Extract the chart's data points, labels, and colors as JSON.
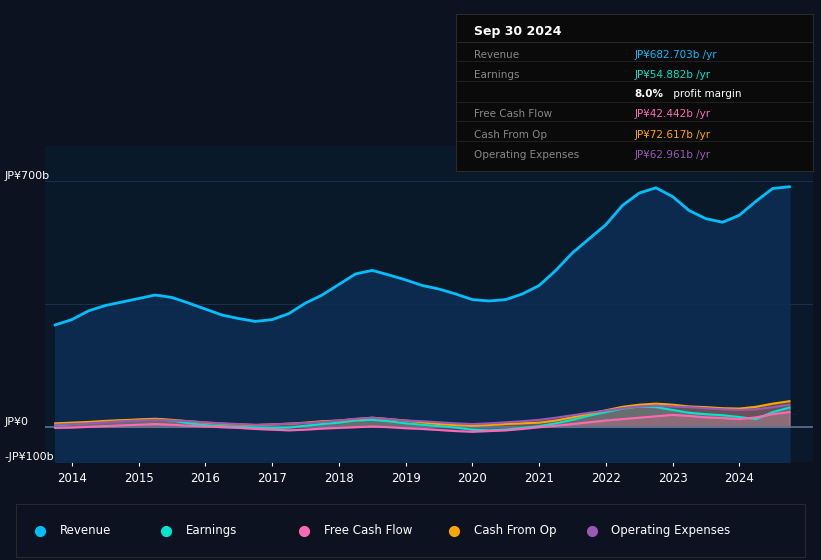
{
  "bg_outer": "#0c1220",
  "bg_chart": "#0a1929",
  "title_date": "Sep 30 2024",
  "tooltip": {
    "Revenue": {
      "value": "JP¥682.703b /yr",
      "color": "#00bfff"
    },
    "Earnings": {
      "value": "JP¥54.882b /yr",
      "color": "#00e5cc"
    },
    "profit_margin": "8.0%",
    "Free Cash Flow": {
      "value": "JP¥42.442b /yr",
      "color": "#ff69b4"
    },
    "Cash From Op": {
      "value": "JP¥72.617b /yr",
      "color": "#ffa500"
    },
    "Operating Expenses": {
      "value": "JP¥62.961b /yr",
      "color": "#9b59b6"
    }
  },
  "years": [
    2013.75,
    2014.0,
    2014.25,
    2014.5,
    2014.75,
    2015.0,
    2015.25,
    2015.5,
    2015.75,
    2016.0,
    2016.25,
    2016.5,
    2016.75,
    2017.0,
    2017.25,
    2017.5,
    2017.75,
    2018.0,
    2018.25,
    2018.5,
    2018.75,
    2019.0,
    2019.25,
    2019.5,
    2019.75,
    2020.0,
    2020.25,
    2020.5,
    2020.75,
    2021.0,
    2021.25,
    2021.5,
    2021.75,
    2022.0,
    2022.25,
    2022.5,
    2022.75,
    2023.0,
    2023.25,
    2023.5,
    2023.75,
    2024.0,
    2024.25,
    2024.5,
    2024.75
  ],
  "revenue": [
    290,
    305,
    330,
    345,
    355,
    365,
    375,
    368,
    352,
    335,
    318,
    308,
    300,
    305,
    322,
    352,
    375,
    405,
    435,
    445,
    432,
    418,
    402,
    392,
    378,
    362,
    358,
    362,
    378,
    402,
    445,
    495,
    535,
    575,
    630,
    665,
    680,
    655,
    615,
    592,
    582,
    602,
    642,
    678,
    683
  ],
  "earnings": [
    5,
    8,
    12,
    15,
    18,
    20,
    22,
    18,
    10,
    5,
    2,
    0,
    -2,
    -3,
    -2,
    3,
    8,
    12,
    18,
    20,
    16,
    10,
    6,
    2,
    -2,
    -8,
    -10,
    -8,
    -3,
    2,
    10,
    20,
    32,
    42,
    52,
    58,
    56,
    48,
    40,
    36,
    33,
    28,
    22,
    42,
    55
  ],
  "free_cash_flow": [
    -3,
    -2,
    0,
    2,
    4,
    6,
    8,
    6,
    3,
    1,
    -1,
    -3,
    -6,
    -8,
    -10,
    -8,
    -5,
    -3,
    -1,
    1,
    -1,
    -4,
    -6,
    -9,
    -12,
    -14,
    -12,
    -10,
    -6,
    -1,
    3,
    8,
    13,
    18,
    22,
    26,
    30,
    34,
    31,
    27,
    25,
    22,
    27,
    36,
    42
  ],
  "cash_from_op": [
    10,
    12,
    14,
    17,
    19,
    21,
    23,
    20,
    16,
    12,
    9,
    7,
    5,
    7,
    9,
    12,
    16,
    18,
    22,
    26,
    22,
    18,
    13,
    8,
    5,
    3,
    5,
    8,
    10,
    12,
    18,
    27,
    37,
    47,
    57,
    63,
    66,
    63,
    58,
    56,
    53,
    52,
    57,
    66,
    73
  ],
  "operating_expenses": [
    6,
    8,
    10,
    13,
    16,
    18,
    20,
    18,
    16,
    13,
    10,
    8,
    6,
    7,
    9,
    11,
    14,
    18,
    23,
    26,
    22,
    18,
    16,
    13,
    10,
    8,
    10,
    13,
    16,
    20,
    26,
    33,
    40,
    46,
    53,
    58,
    60,
    58,
    56,
    53,
    50,
    48,
    50,
    56,
    63
  ],
  "ylim": [
    -100,
    800
  ],
  "ytick_labels": [
    "-JP¥100b",
    "JP¥0",
    "JP¥700b"
  ],
  "ytick_values": [
    -100,
    0,
    700
  ],
  "xticks": [
    2014,
    2015,
    2016,
    2017,
    2018,
    2019,
    2020,
    2021,
    2022,
    2023,
    2024
  ],
  "legend": [
    {
      "label": "Revenue",
      "color": "#00bfff"
    },
    {
      "label": "Earnings",
      "color": "#00e5cc"
    },
    {
      "label": "Free Cash Flow",
      "color": "#ff69b4"
    },
    {
      "label": "Cash From Op",
      "color": "#ffa500"
    },
    {
      "label": "Operating Expenses",
      "color": "#9b59b6"
    }
  ],
  "grid_color": "#1a3050",
  "zero_line_color": "#5a7090"
}
